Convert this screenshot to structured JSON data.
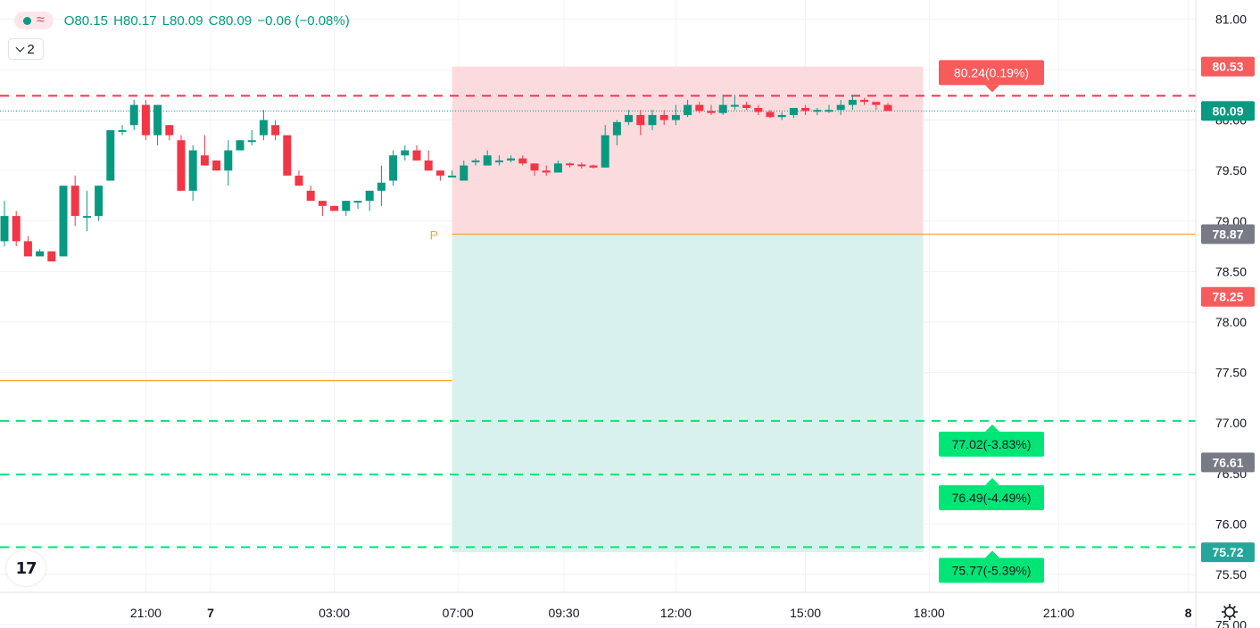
{
  "legend": {
    "open": "O80.15",
    "high": "H80.17",
    "low": "L80.09",
    "close": "C80.09",
    "change": "−0.06 (−0.08%)"
  },
  "collapse_button": {
    "count": "2"
  },
  "logo_text": "17",
  "colors": {
    "up": "#089981",
    "down": "#f23645",
    "stop_zone": "#fcdbdf",
    "target_zone": "#d9f1ec",
    "pivot_line": "#f7a534",
    "stop_label": "#f75b5b",
    "target_label": "#00e676",
    "grid": "#f0f3fa"
  },
  "chart_data": {
    "type": "candlestick",
    "ylim": [
      74.97,
      81.18
    ],
    "y_ticks": [
      "81.00",
      "80.50",
      "80.00",
      "79.50",
      "79.00",
      "78.50",
      "78.00",
      "77.50",
      "77.00",
      "76.50",
      "76.00",
      "75.50",
      "75.00"
    ],
    "y_tick_values": [
      81.0,
      80.5,
      80.0,
      79.5,
      79.0,
      78.5,
      78.0,
      77.5,
      77.0,
      76.5,
      76.0,
      75.5,
      75.0
    ],
    "x_ticks": [
      {
        "label": "21:00",
        "bold": false,
        "bar": 12
      },
      {
        "label": "7",
        "bold": true,
        "bar": 17.5
      },
      {
        "label": "03:00",
        "bold": false,
        "bar": 28
      },
      {
        "label": "07:00",
        "bold": false,
        "bar": 38.5
      },
      {
        "label": "09:30",
        "bold": false,
        "bar": 47.5
      },
      {
        "label": "12:00",
        "bold": false,
        "bar": 57
      },
      {
        "label": "15:00",
        "bold": false,
        "bar": 68
      },
      {
        "label": "18:00",
        "bold": false,
        "bar": 78.5
      },
      {
        "label": "21:00",
        "bold": false,
        "bar": 89.5
      },
      {
        "label": "8",
        "bold": true,
        "bar": 100.5
      }
    ],
    "candles": [
      [
        78.8,
        79.2,
        78.75,
        79.05
      ],
      [
        79.05,
        79.1,
        78.75,
        78.8
      ],
      [
        78.8,
        78.85,
        78.65,
        78.65
      ],
      [
        78.65,
        78.72,
        78.65,
        78.7
      ],
      [
        78.7,
        78.7,
        78.6,
        78.6
      ],
      [
        78.65,
        79.35,
        78.65,
        79.35
      ],
      [
        79.35,
        79.45,
        78.95,
        79.05
      ],
      [
        79.05,
        79.3,
        78.9,
        79.05
      ],
      [
        79.05,
        79.35,
        79.0,
        79.35
      ],
      [
        79.4,
        79.9,
        79.4,
        79.9
      ],
      [
        79.9,
        79.95,
        79.85,
        79.9
      ],
      [
        79.95,
        80.2,
        79.9,
        80.15
      ],
      [
        80.15,
        80.2,
        79.8,
        79.85
      ],
      [
        79.85,
        80.15,
        79.75,
        80.15
      ],
      [
        79.95,
        79.95,
        79.8,
        79.85
      ],
      [
        79.8,
        79.85,
        79.3,
        79.3
      ],
      [
        79.3,
        79.75,
        79.2,
        79.7
      ],
      [
        79.65,
        79.85,
        79.55,
        79.55
      ],
      [
        79.6,
        79.6,
        79.5,
        79.5
      ],
      [
        79.5,
        79.8,
        79.35,
        79.7
      ],
      [
        79.7,
        79.8,
        79.7,
        79.8
      ],
      [
        79.8,
        79.9,
        79.75,
        79.8
      ],
      [
        79.85,
        80.1,
        79.8,
        80.0
      ],
      [
        79.95,
        80.0,
        79.8,
        79.85
      ],
      [
        79.85,
        79.85,
        79.5,
        79.45
      ],
      [
        79.45,
        79.5,
        79.35,
        79.35
      ],
      [
        79.3,
        79.35,
        79.2,
        79.2
      ],
      [
        79.2,
        79.2,
        79.05,
        79.15
      ],
      [
        79.15,
        79.15,
        79.1,
        79.1
      ],
      [
        79.1,
        79.2,
        79.05,
        79.2
      ],
      [
        79.2,
        79.2,
        79.12,
        79.2
      ],
      [
        79.2,
        79.3,
        79.1,
        79.3
      ],
      [
        79.3,
        79.55,
        79.15,
        79.38
      ],
      [
        79.4,
        79.7,
        79.35,
        79.65
      ],
      [
        79.65,
        79.75,
        79.6,
        79.7
      ],
      [
        79.7,
        79.75,
        79.6,
        79.6
      ],
      [
        79.6,
        79.7,
        79.5,
        79.5
      ],
      [
        79.5,
        79.5,
        79.4,
        79.45
      ],
      [
        79.45,
        79.5,
        79.45,
        79.45
      ],
      [
        79.4,
        79.6,
        79.4,
        79.55
      ],
      [
        79.6,
        79.62,
        79.55,
        79.6
      ],
      [
        79.55,
        79.7,
        79.55,
        79.65
      ],
      [
        79.6,
        79.65,
        79.55,
        79.6
      ],
      [
        79.6,
        79.65,
        79.58,
        79.62
      ],
      [
        79.62,
        79.65,
        79.55,
        79.57
      ],
      [
        79.57,
        79.57,
        79.45,
        79.5
      ],
      [
        79.5,
        79.55,
        79.45,
        79.48
      ],
      [
        79.48,
        79.6,
        79.48,
        79.57
      ],
      [
        79.57,
        79.58,
        79.53,
        79.56
      ],
      [
        79.56,
        79.58,
        79.52,
        79.55
      ],
      [
        79.55,
        79.56,
        79.52,
        79.53
      ],
      [
        79.53,
        79.95,
        79.53,
        79.85
      ],
      [
        79.85,
        80.0,
        79.75,
        79.98
      ],
      [
        79.98,
        80.1,
        79.95,
        80.05
      ],
      [
        80.05,
        80.1,
        79.85,
        79.95
      ],
      [
        79.95,
        80.1,
        79.9,
        80.05
      ],
      [
        80.05,
        80.1,
        79.95,
        80.0
      ],
      [
        80.0,
        80.15,
        79.95,
        80.05
      ],
      [
        80.05,
        80.2,
        80.03,
        80.15
      ],
      [
        80.15,
        80.18,
        80.07,
        80.09
      ],
      [
        80.09,
        80.15,
        80.05,
        80.07
      ],
      [
        80.07,
        80.25,
        80.05,
        80.15
      ],
      [
        80.15,
        80.25,
        80.1,
        80.15
      ],
      [
        80.15,
        80.18,
        80.1,
        80.12
      ],
      [
        80.12,
        80.15,
        80.05,
        80.08
      ],
      [
        80.08,
        80.1,
        80.02,
        80.03
      ],
      [
        80.03,
        80.08,
        80.0,
        80.05
      ],
      [
        80.05,
        80.12,
        80.02,
        80.12
      ],
      [
        80.12,
        80.15,
        80.05,
        80.09
      ],
      [
        80.09,
        80.12,
        80.05,
        80.1
      ],
      [
        80.1,
        80.15,
        80.07,
        80.1
      ],
      [
        80.1,
        80.2,
        80.05,
        80.15
      ],
      [
        80.15,
        80.25,
        80.1,
        80.2
      ],
      [
        80.2,
        80.22,
        80.15,
        80.18
      ],
      [
        80.18,
        80.18,
        80.1,
        80.15
      ],
      [
        80.15,
        80.17,
        80.09,
        80.09
      ]
    ],
    "current_price": 80.09,
    "pivot_label": "P",
    "pivot_price": 78.87,
    "pivot_prev_price": 77.42,
    "pivot_start_bar": 38,
    "zone_end_bar": 78,
    "stop_zone": [
      78.87,
      80.53
    ],
    "target_zone": [
      75.72,
      78.87
    ],
    "stop_line": {
      "price": 80.24,
      "label": "80.24(0.19%)"
    },
    "target_lines": [
      {
        "price": 77.02,
        "label": "77.02(-3.83%)"
      },
      {
        "price": 76.49,
        "label": "76.49(-4.49%)"
      },
      {
        "price": 75.77,
        "label": "75.77(-5.39%)"
      }
    ],
    "axis_tags": [
      {
        "price": 80.53,
        "text": "80.53",
        "bg": "#f75b5b"
      },
      {
        "price": 80.09,
        "text": "80.09",
        "bg": "#089981"
      },
      {
        "price": 78.87,
        "text": "78.87",
        "bg": "#787b86"
      },
      {
        "price": 78.25,
        "text": "78.25",
        "bg": "#f75b5b"
      },
      {
        "price": 76.61,
        "text": "76.61",
        "bg": "#787b86"
      },
      {
        "price": 75.72,
        "text": "75.72",
        "bg": "#26a69a"
      }
    ]
  }
}
